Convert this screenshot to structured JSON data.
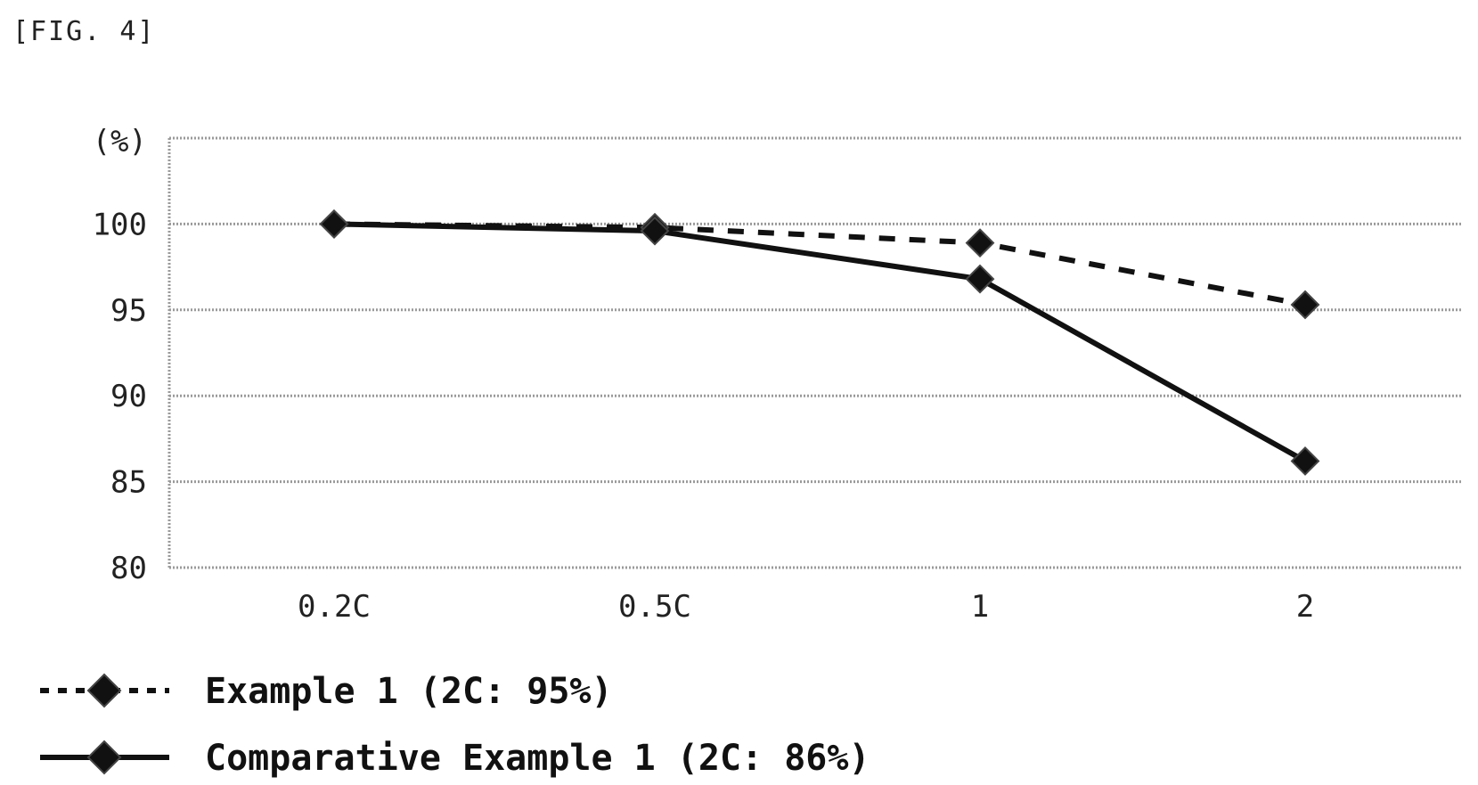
{
  "figure_label": "[FIG. 4]",
  "chart_data": {
    "type": "line",
    "title": "",
    "xlabel": "",
    "ylabel": "(%)",
    "categories": [
      "0.2C",
      "0.5C",
      "1",
      "2"
    ],
    "ylim": [
      80,
      105
    ],
    "yticks": [
      80,
      85,
      90,
      95,
      100
    ],
    "grid": true,
    "legend_position": "bottom-left",
    "series": [
      {
        "name": "Example 1 (2C: 95%)",
        "values": [
          100,
          99.8,
          98.9,
          95.3
        ],
        "style": "dashed",
        "marker": "diamond",
        "color": "#111111"
      },
      {
        "name": "Comparative Example 1 (2C: 86%)",
        "values": [
          100,
          99.6,
          96.8,
          86.2
        ],
        "style": "solid",
        "marker": "diamond",
        "color": "#111111"
      }
    ]
  }
}
